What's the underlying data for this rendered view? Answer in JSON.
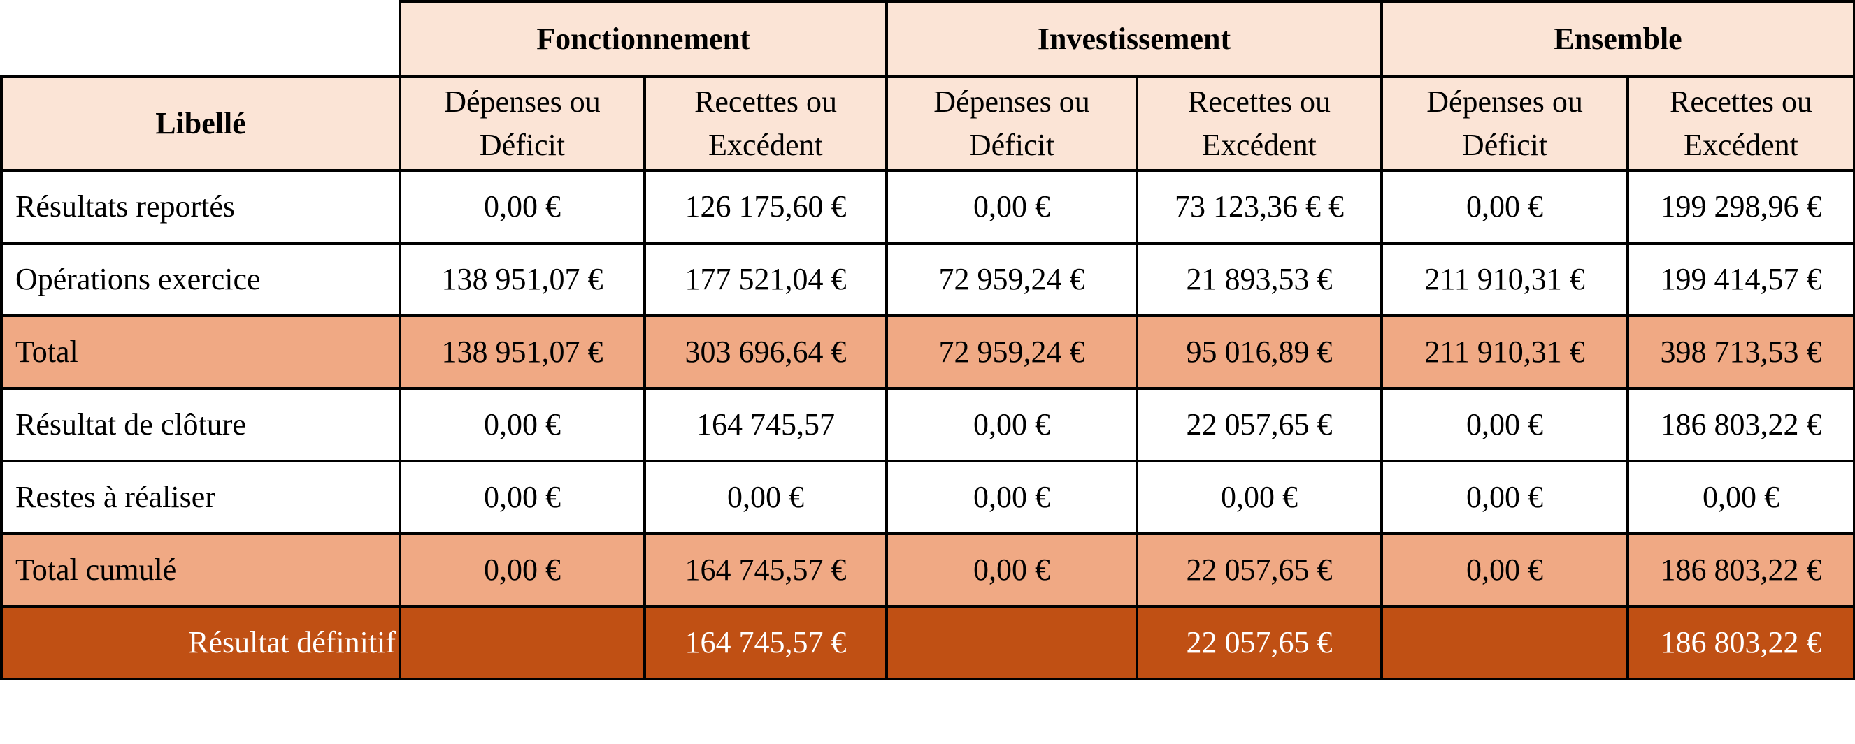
{
  "groups": {
    "fonctionnement": "Fonctionnement",
    "investissement": "Investissement",
    "ensemble": "Ensemble"
  },
  "header": {
    "libelle": "Libellé",
    "depenses": "Dépenses ou Déficit",
    "recettes": "Recettes ou Excédent"
  },
  "rows": [
    {
      "label": "Résultats reportés",
      "values": [
        "0,00 €",
        "126 175,60 €",
        "0,00 €",
        "73 123,36 € €",
        "0,00 €",
        "199 298,96 €"
      ]
    },
    {
      "label": "Opérations exercice",
      "values": [
        "138 951,07 €",
        "177 521,04 €",
        "72 959,24 €",
        "21 893,53 €",
        "211 910,31 €",
        "199 414,57 €"
      ]
    },
    {
      "label": "Total",
      "values": [
        "138 951,07 €",
        "303 696,64 €",
        "72 959,24 €",
        "95 016,89 €",
        "211 910,31 €",
        "398 713,53 €"
      ]
    },
    {
      "label": "Résultat de clôture",
      "values": [
        "0,00 €",
        "164 745,57",
        "0,00 €",
        "22 057,65 €",
        "0,00 €",
        "186 803,22 €"
      ]
    },
    {
      "label": "Restes à réaliser",
      "values": [
        "0,00 €",
        "0,00 €",
        "0,00 €",
        "0,00 €",
        "0,00 €",
        "0,00 €"
      ]
    },
    {
      "label": "Total cumulé",
      "values": [
        "0,00 €",
        "164 745,57 €",
        "0,00 €",
        "22 057,65 €",
        "0,00 €",
        "186 803,22 €"
      ]
    },
    {
      "label": "Résultat définitif",
      "values": [
        "",
        "164 745,57 €",
        "",
        "22 057,65 €",
        "",
        "186 803,22 €"
      ]
    }
  ],
  "colors": {
    "header_bg": "#fbe4d6",
    "total_bg": "#f0a984",
    "final_bg": "#c05014",
    "final_text": "#ffffff"
  }
}
